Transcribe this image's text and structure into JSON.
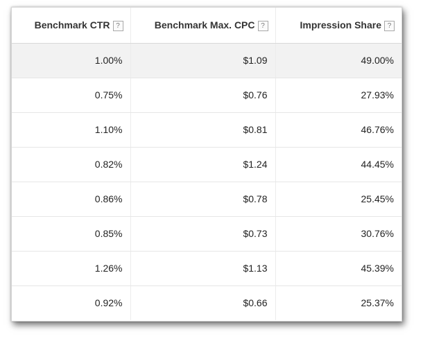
{
  "table": {
    "headers": [
      {
        "label": "Benchmark CTR",
        "help": "?"
      },
      {
        "label": "Benchmark Max. CPC",
        "help": "?"
      },
      {
        "label": "Impression Share",
        "help": "?"
      }
    ],
    "rows": [
      [
        "1.00%",
        "$1.09",
        "49.00%"
      ],
      [
        "0.75%",
        "$0.76",
        "27.93%"
      ],
      [
        "1.10%",
        "$0.81",
        "46.76%"
      ],
      [
        "0.82%",
        "$1.24",
        "44.45%"
      ],
      [
        "0.86%",
        "$0.78",
        "25.45%"
      ],
      [
        "0.85%",
        "$0.73",
        "30.76%"
      ],
      [
        "1.26%",
        "$1.13",
        "45.39%"
      ],
      [
        "0.92%",
        "$0.66",
        "25.37%"
      ]
    ]
  },
  "colors": {
    "highlight_row": "#f2f2f2",
    "text": "#222222",
    "border": "#e6e6e6"
  }
}
